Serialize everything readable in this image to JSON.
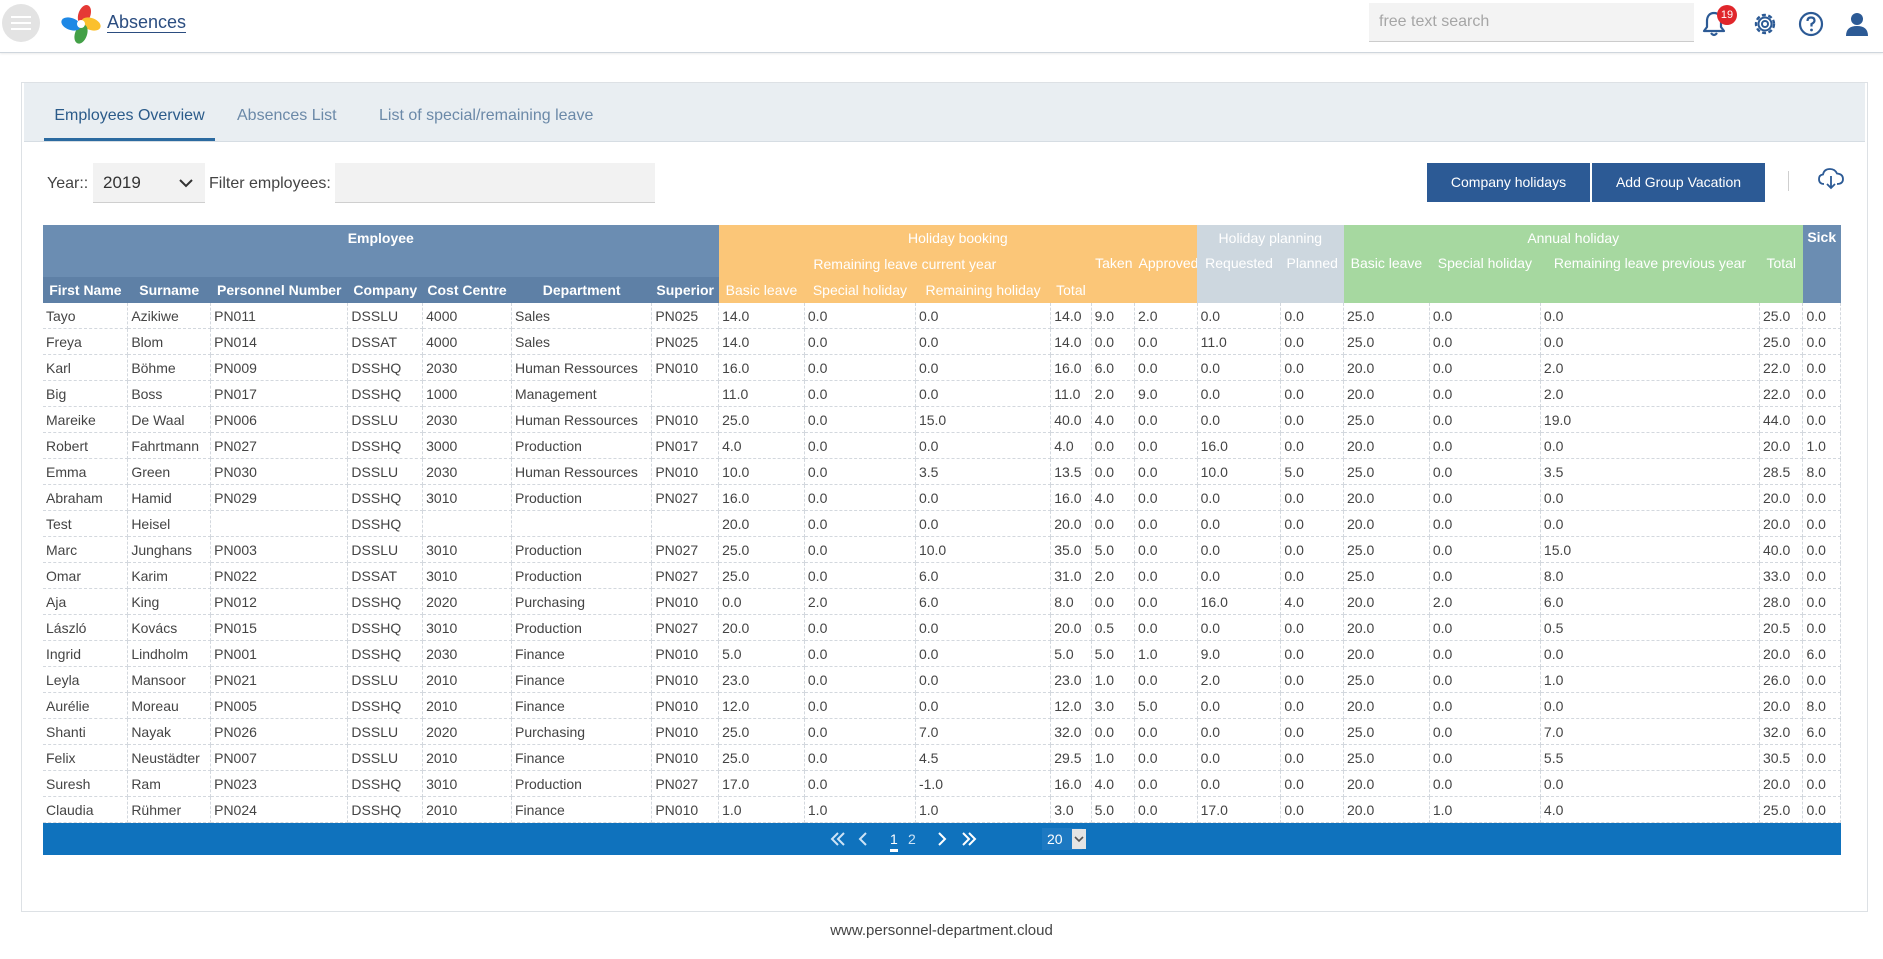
{
  "app": {
    "title": "Absences",
    "footer": "www.personnel-department.cloud"
  },
  "header": {
    "search_placeholder": "free text search",
    "notification_count": "19"
  },
  "tabs": [
    "Employees Overview",
    "Absences List",
    "List of special/remaining leave"
  ],
  "filters": {
    "year_label": "Year::",
    "year_value": "2019",
    "filter_label": "Filter employees:",
    "filter_value": ""
  },
  "buttons": {
    "company_holidays": "Company holidays",
    "add_group_vacation": "Add Group Vacation"
  },
  "table": {
    "group_headers": {
      "employee": "Employee",
      "holiday_booking": "Holiday booking",
      "holiday_planning": "Holiday planning",
      "annual_holiday": "Annual holiday",
      "sick": "Sick"
    },
    "subgroup_headers": {
      "remaining_leave_current_year": "Remaining leave current year",
      "taken": "Taken",
      "approved": "Approved",
      "requested": "Requested",
      "planned": "Planned",
      "basic_leave": "Basic leave",
      "special_holiday": "Special holiday",
      "remaining_leave_previous_year": "Remaining leave previous year",
      "total": "Total"
    },
    "columns": {
      "first_name": "First Name",
      "surname": "Surname",
      "personnel_number": "Personnel Number",
      "company": "Company",
      "cost_centre": "Cost Centre",
      "department": "Department",
      "superior": "Superior",
      "basic_leave": "Basic leave",
      "special_holiday": "Special holiday",
      "remaining_holiday": "Remaining holiday",
      "total": "Total"
    },
    "rows": [
      [
        "Tayo",
        "Azikiwe",
        "PN011",
        "DSSLU",
        "4000",
        "Sales",
        "PN025",
        "14.0",
        "0.0",
        "0.0",
        "14.0",
        "9.0",
        "2.0",
        "0.0",
        "0.0",
        "25.0",
        "0.0",
        "0.0",
        "25.0",
        "0.0"
      ],
      [
        "Freya",
        "Blom",
        "PN014",
        "DSSAT",
        "4000",
        "Sales",
        "PN025",
        "14.0",
        "0.0",
        "0.0",
        "14.0",
        "0.0",
        "0.0",
        "11.0",
        "0.0",
        "25.0",
        "0.0",
        "0.0",
        "25.0",
        "0.0"
      ],
      [
        "Karl",
        "Böhme",
        "PN009",
        "DSSHQ",
        "2030",
        "Human Ressources",
        "PN010",
        "16.0",
        "0.0",
        "0.0",
        "16.0",
        "6.0",
        "0.0",
        "0.0",
        "0.0",
        "20.0",
        "0.0",
        "2.0",
        "22.0",
        "0.0"
      ],
      [
        "Big",
        "Boss",
        "PN017",
        "DSSHQ",
        "1000",
        "Management",
        "",
        "11.0",
        "0.0",
        "0.0",
        "11.0",
        "2.0",
        "9.0",
        "0.0",
        "0.0",
        "20.0",
        "0.0",
        "2.0",
        "22.0",
        "0.0"
      ],
      [
        "Mareike",
        "De Waal",
        "PN006",
        "DSSLU",
        "2030",
        "Human Ressources",
        "PN010",
        "25.0",
        "0.0",
        "15.0",
        "40.0",
        "4.0",
        "0.0",
        "0.0",
        "0.0",
        "25.0",
        "0.0",
        "19.0",
        "44.0",
        "0.0"
      ],
      [
        "Robert",
        "Fahrtmann",
        "PN027",
        "DSSHQ",
        "3000",
        "Production",
        "PN017",
        "4.0",
        "0.0",
        "0.0",
        "4.0",
        "0.0",
        "0.0",
        "16.0",
        "0.0",
        "20.0",
        "0.0",
        "0.0",
        "20.0",
        "1.0"
      ],
      [
        "Emma",
        "Green",
        "PN030",
        "DSSLU",
        "2030",
        "Human Ressources",
        "PN010",
        "10.0",
        "0.0",
        "3.5",
        "13.5",
        "0.0",
        "0.0",
        "10.0",
        "5.0",
        "25.0",
        "0.0",
        "3.5",
        "28.5",
        "8.0"
      ],
      [
        "Abraham",
        "Hamid",
        "PN029",
        "DSSHQ",
        "3010",
        "Production",
        "PN027",
        "16.0",
        "0.0",
        "0.0",
        "16.0",
        "4.0",
        "0.0",
        "0.0",
        "0.0",
        "20.0",
        "0.0",
        "0.0",
        "20.0",
        "0.0"
      ],
      [
        "Test",
        "Heisel",
        "",
        "DSSHQ",
        "",
        "",
        "",
        "20.0",
        "0.0",
        "0.0",
        "20.0",
        "0.0",
        "0.0",
        "0.0",
        "0.0",
        "20.0",
        "0.0",
        "0.0",
        "20.0",
        "0.0"
      ],
      [
        "Marc",
        "Junghans",
        "PN003",
        "DSSLU",
        "3010",
        "Production",
        "PN027",
        "25.0",
        "0.0",
        "10.0",
        "35.0",
        "5.0",
        "0.0",
        "0.0",
        "0.0",
        "25.0",
        "0.0",
        "15.0",
        "40.0",
        "0.0"
      ],
      [
        "Omar",
        "Karim",
        "PN022",
        "DSSAT",
        "3010",
        "Production",
        "PN027",
        "25.0",
        "0.0",
        "6.0",
        "31.0",
        "2.0",
        "0.0",
        "0.0",
        "0.0",
        "25.0",
        "0.0",
        "8.0",
        "33.0",
        "0.0"
      ],
      [
        "Aja",
        "King",
        "PN012",
        "DSSHQ",
        "2020",
        "Purchasing",
        "PN010",
        "0.0",
        "2.0",
        "6.0",
        "8.0",
        "0.0",
        "0.0",
        "16.0",
        "4.0",
        "20.0",
        "2.0",
        "6.0",
        "28.0",
        "0.0"
      ],
      [
        "László",
        "Kovács",
        "PN015",
        "DSSHQ",
        "3010",
        "Production",
        "PN027",
        "20.0",
        "0.0",
        "0.0",
        "20.0",
        "0.5",
        "0.0",
        "0.0",
        "0.0",
        "20.0",
        "0.0",
        "0.5",
        "20.5",
        "0.0"
      ],
      [
        "Ingrid",
        "Lindholm",
        "PN001",
        "DSSHQ",
        "2030",
        "Finance",
        "PN010",
        "5.0",
        "0.0",
        "0.0",
        "5.0",
        "5.0",
        "1.0",
        "9.0",
        "0.0",
        "20.0",
        "0.0",
        "0.0",
        "20.0",
        "6.0"
      ],
      [
        "Leyla",
        "Mansoor",
        "PN021",
        "DSSLU",
        "2010",
        "Finance",
        "PN010",
        "23.0",
        "0.0",
        "0.0",
        "23.0",
        "1.0",
        "0.0",
        "2.0",
        "0.0",
        "25.0",
        "0.0",
        "1.0",
        "26.0",
        "0.0"
      ],
      [
        "Aurélie",
        "Moreau",
        "PN005",
        "DSSHQ",
        "2010",
        "Finance",
        "PN010",
        "12.0",
        "0.0",
        "0.0",
        "12.0",
        "3.0",
        "5.0",
        "0.0",
        "0.0",
        "20.0",
        "0.0",
        "0.0",
        "20.0",
        "8.0"
      ],
      [
        "Shanti",
        "Nayak",
        "PN026",
        "DSSLU",
        "2020",
        "Purchasing",
        "PN010",
        "25.0",
        "0.0",
        "7.0",
        "32.0",
        "0.0",
        "0.0",
        "0.0",
        "0.0",
        "25.0",
        "0.0",
        "7.0",
        "32.0",
        "6.0"
      ],
      [
        "Felix",
        "Neustädter",
        "PN007",
        "DSSLU",
        "2010",
        "Finance",
        "PN010",
        "25.0",
        "0.0",
        "4.5",
        "29.5",
        "1.0",
        "0.0",
        "0.0",
        "0.0",
        "25.0",
        "0.0",
        "5.5",
        "30.5",
        "0.0"
      ],
      [
        "Suresh",
        "Ram",
        "PN023",
        "DSSHQ",
        "3010",
        "Production",
        "PN027",
        "17.0",
        "0.0",
        "-1.0",
        "16.0",
        "4.0",
        "0.0",
        "0.0",
        "0.0",
        "20.0",
        "0.0",
        "0.0",
        "20.0",
        "0.0"
      ],
      [
        "Claudia",
        "Rühmer",
        "PN024",
        "DSSHQ",
        "2010",
        "Finance",
        "PN010",
        "1.0",
        "1.0",
        "1.0",
        "3.0",
        "5.0",
        "0.0",
        "17.0",
        "0.0",
        "20.0",
        "1.0",
        "4.0",
        "25.0",
        "0.0"
      ]
    ]
  },
  "pagination": {
    "pages": [
      "1",
      "2"
    ],
    "current": "1",
    "page_size": "20"
  }
}
